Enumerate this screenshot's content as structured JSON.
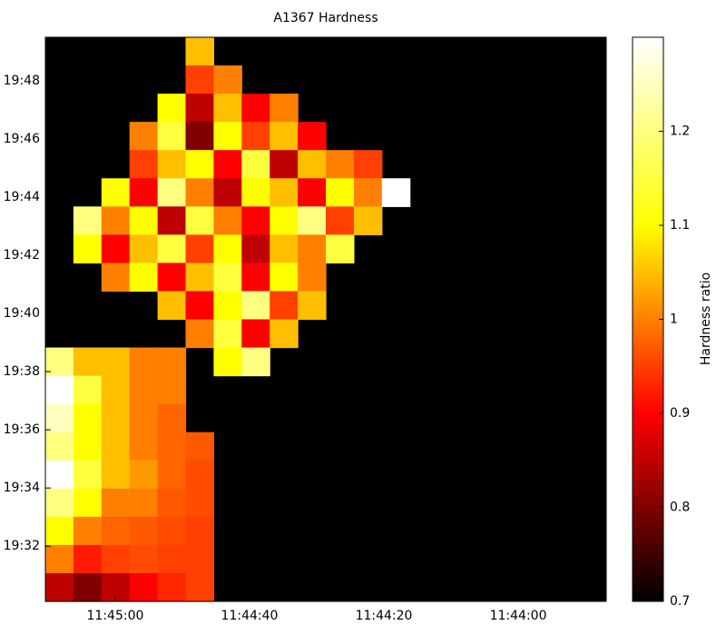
{
  "chart_data": {
    "type": "heatmap",
    "title": "A1367 Hardness",
    "colorbar_label": "Hardness ratio",
    "colormap": "hot",
    "clim": [
      0.7,
      1.3
    ],
    "cticks": [
      0.7,
      0.8,
      0.9,
      1,
      1.1,
      1.2
    ],
    "xlim": [
      42310.4,
      42226.9
    ],
    "xticks": [
      {
        "value": 42300,
        "label": "11:45:00"
      },
      {
        "value": 42280,
        "label": "11:44:40"
      },
      {
        "value": 42260,
        "label": "11:44:20"
      },
      {
        "value": 42240,
        "label": "11:44:00"
      }
    ],
    "ylim": [
      1170.1,
      1189.5
    ],
    "yticks": [
      {
        "value": 1172,
        "label": "19:32"
      },
      {
        "value": 1174,
        "label": "19:34"
      },
      {
        "value": 1176,
        "label": "19:36"
      },
      {
        "value": 1178,
        "label": "19:38"
      },
      {
        "value": 1180,
        "label": "19:40"
      },
      {
        "value": 1182,
        "label": "19:42"
      },
      {
        "value": 1184,
        "label": "19:44"
      },
      {
        "value": 1186,
        "label": "19:46"
      },
      {
        "value": 1188,
        "label": "19:48"
      }
    ],
    "z": [
      [
        null,
        null,
        null,
        null,
        null,
        1.05,
        null,
        null,
        null,
        null,
        null,
        null,
        null,
        null,
        null,
        null,
        null,
        null,
        null,
        null
      ],
      [
        null,
        null,
        null,
        null,
        null,
        0.95,
        1.0,
        null,
        null,
        null,
        null,
        null,
        null,
        null,
        null,
        null,
        null,
        null,
        null,
        null
      ],
      [
        null,
        null,
        null,
        null,
        1.1,
        0.85,
        1.05,
        0.9,
        1.0,
        null,
        null,
        null,
        null,
        null,
        null,
        null,
        null,
        null,
        null,
        null
      ],
      [
        null,
        null,
        null,
        1.0,
        1.15,
        0.8,
        1.1,
        0.95,
        1.05,
        0.9,
        null,
        null,
        null,
        null,
        null,
        null,
        null,
        null,
        null,
        null
      ],
      [
        null,
        null,
        null,
        0.95,
        1.05,
        1.1,
        0.9,
        1.15,
        0.85,
        1.05,
        1.0,
        0.95,
        null,
        null,
        null,
        null,
        null,
        null,
        null,
        null
      ],
      [
        null,
        null,
        1.1,
        0.9,
        1.2,
        1.0,
        0.85,
        1.1,
        1.05,
        0.9,
        1.1,
        1.0,
        1.3,
        null,
        null,
        null,
        null,
        null,
        null,
        null
      ],
      [
        null,
        1.2,
        1.0,
        1.1,
        0.85,
        1.15,
        1.0,
        0.9,
        1.1,
        1.2,
        0.95,
        1.05,
        null,
        null,
        null,
        null,
        null,
        null,
        null,
        null
      ],
      [
        null,
        1.1,
        0.9,
        1.05,
        1.15,
        0.95,
        1.1,
        0.85,
        1.05,
        1.0,
        1.15,
        null,
        null,
        null,
        null,
        null,
        null,
        null,
        null,
        null
      ],
      [
        null,
        null,
        1.0,
        1.1,
        0.9,
        1.05,
        1.15,
        0.9,
        1.1,
        1.0,
        null,
        null,
        null,
        null,
        null,
        null,
        null,
        null,
        null,
        null
      ],
      [
        null,
        null,
        null,
        null,
        1.05,
        0.9,
        1.1,
        1.2,
        0.95,
        1.05,
        null,
        null,
        null,
        null,
        null,
        null,
        null,
        null,
        null,
        null
      ],
      [
        null,
        null,
        null,
        null,
        null,
        1.0,
        1.15,
        0.9,
        1.05,
        null,
        null,
        null,
        null,
        null,
        null,
        null,
        null,
        null,
        null,
        null
      ],
      [
        1.2,
        1.05,
        1.05,
        1.0,
        1.0,
        null,
        1.1,
        1.2,
        null,
        null,
        null,
        null,
        null,
        null,
        null,
        null,
        null,
        null,
        null,
        null
      ],
      [
        1.3,
        1.15,
        1.05,
        1.0,
        1.0,
        null,
        null,
        null,
        null,
        null,
        null,
        null,
        null,
        null,
        null,
        null,
        null,
        null,
        null,
        null
      ],
      [
        1.25,
        1.1,
        1.05,
        1.0,
        0.98,
        null,
        null,
        null,
        null,
        null,
        null,
        null,
        null,
        null,
        null,
        null,
        null,
        null,
        null,
        null
      ],
      [
        1.2,
        1.1,
        1.05,
        1.0,
        0.98,
        0.97,
        null,
        null,
        null,
        null,
        null,
        null,
        null,
        null,
        null,
        null,
        null,
        null,
        null,
        null
      ],
      [
        1.3,
        1.15,
        1.05,
        1.02,
        0.98,
        0.96,
        null,
        null,
        null,
        null,
        null,
        null,
        null,
        null,
        null,
        null,
        null,
        null,
        null,
        null
      ],
      [
        1.2,
        1.1,
        1.0,
        1.0,
        0.97,
        0.96,
        null,
        null,
        null,
        null,
        null,
        null,
        null,
        null,
        null,
        null,
        null,
        null,
        null,
        null
      ],
      [
        1.1,
        1.0,
        0.98,
        0.97,
        0.96,
        0.95,
        null,
        null,
        null,
        null,
        null,
        null,
        null,
        null,
        null,
        null,
        null,
        null,
        null,
        null
      ],
      [
        1.0,
        0.92,
        0.95,
        0.96,
        0.95,
        0.95,
        null,
        null,
        null,
        null,
        null,
        null,
        null,
        null,
        null,
        null,
        null,
        null,
        null,
        null
      ],
      [
        0.85,
        0.8,
        0.85,
        0.9,
        0.93,
        0.95,
        null,
        null,
        null,
        null,
        null,
        null,
        null,
        null,
        null,
        null,
        null,
        null,
        null,
        null
      ]
    ]
  }
}
